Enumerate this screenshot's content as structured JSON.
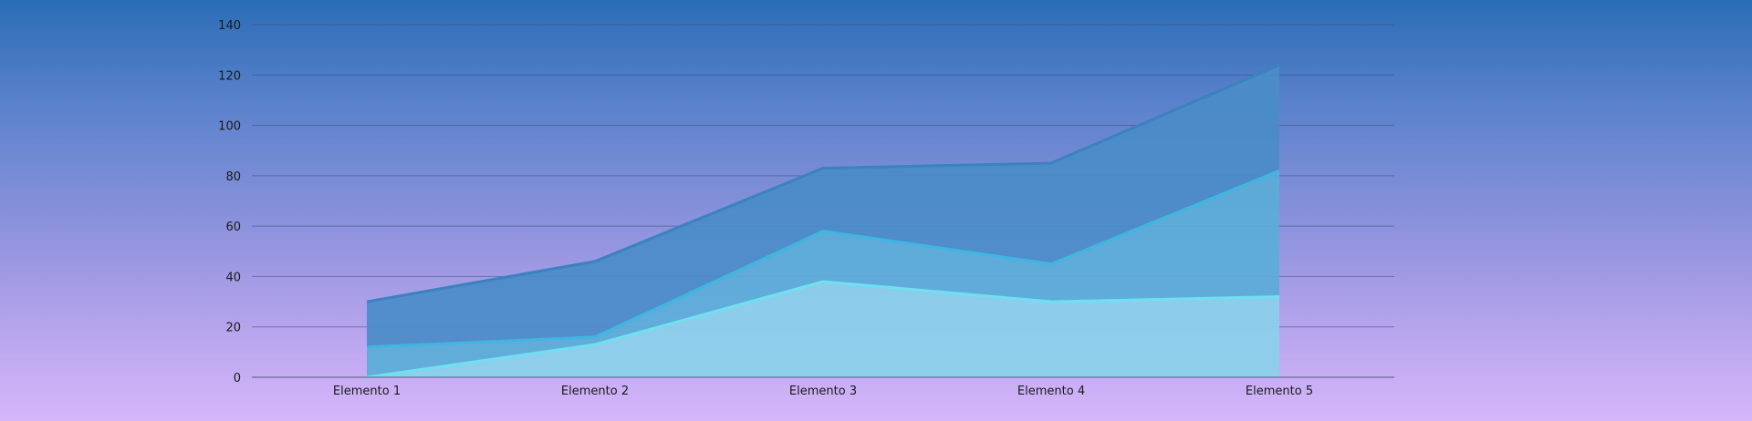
{
  "chart_data": {
    "type": "area",
    "stacked": true,
    "title": "",
    "xlabel": "",
    "ylabel": "",
    "categories": [
      "Elemento 1",
      "Elemento 2",
      "Elemento 3",
      "Elemento 4",
      "Elemento 5"
    ],
    "ylim": [
      0,
      140
    ],
    "yticks": [
      0,
      20,
      40,
      60,
      80,
      100,
      120,
      140
    ],
    "grid": true,
    "legend": "none",
    "series": [
      {
        "values": [
          0,
          13,
          38,
          30,
          32
        ],
        "color": "#8ad0ea",
        "line_color": "#6fe0f0"
      },
      {
        "values": [
          12,
          3,
          20,
          15,
          50
        ],
        "color": "#5aadd8",
        "line_color": "#3fb6e0"
      },
      {
        "values": [
          18,
          30,
          25,
          40,
          42
        ],
        "color": "#4a8cc8",
        "line_color": "#3a82c0"
      }
    ]
  }
}
